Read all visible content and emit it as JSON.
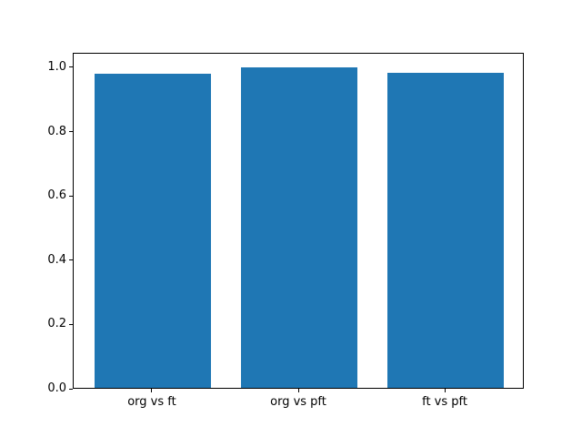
{
  "chart_data": {
    "type": "bar",
    "categories": [
      "org vs ft",
      "org vs pft",
      "ft vs pft"
    ],
    "values": [
      0.976,
      0.996,
      0.979
    ],
    "title": "",
    "xlabel": "",
    "ylabel": "",
    "ylim": [
      0,
      1.045
    ],
    "yticks": [
      0.0,
      0.2,
      0.4,
      0.6,
      0.8,
      1.0
    ],
    "ytick_label_format": "one_decimal",
    "bar_color": "#1f77b4",
    "axes_edge_color": "#000000",
    "background_color": "#ffffff",
    "grid": false,
    "legend_position": "none"
  }
}
